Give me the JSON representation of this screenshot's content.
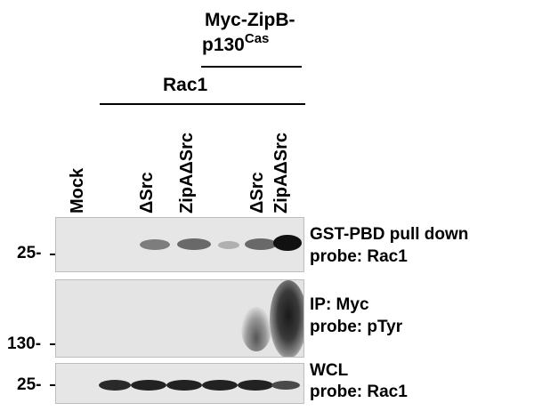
{
  "header": {
    "construct_line1": "Myc-ZipB-",
    "construct_line2_main": "p130",
    "construct_line2_sup": "Cas",
    "group_label": "Rac1"
  },
  "lanes": [
    {
      "label": "Mock"
    },
    {
      "label": ""
    },
    {
      "label": "ΔSrc"
    },
    {
      "label": "ZipAΔSrc"
    },
    {
      "label": ""
    },
    {
      "label": "ΔSrc"
    },
    {
      "label": "ZipAΔSrc"
    }
  ],
  "panels": [
    {
      "marker": "25-",
      "line1": "GST-PBD pull down",
      "line2": "probe: Rac1"
    },
    {
      "marker": "130-",
      "line1": "IP: Myc",
      "line2": "probe: pTyr"
    },
    {
      "marker": "25-",
      "line1": "WCL",
      "line2": "probe: Rac1"
    }
  ]
}
